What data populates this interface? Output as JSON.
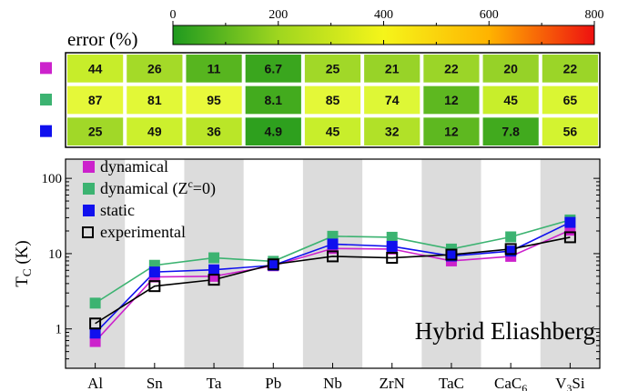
{
  "chart_data": [
    {
      "type": "heatmap",
      "colorbar": {
        "label": "error (%)",
        "ticks": [
          0,
          200,
          400,
          600,
          800
        ],
        "range": [
          0,
          800
        ],
        "colors": [
          "#1f9a1f",
          "#9fd61f",
          "#f5f51a",
          "#ffb300",
          "#ee1010"
        ]
      },
      "columns": [
        "Al",
        "Sn",
        "Ta",
        "Pb",
        "Nb",
        "ZrN",
        "TaC",
        "CaC6",
        "V3Si"
      ],
      "rows": [
        {
          "marker_color": "#cc22cc",
          "values": [
            44,
            26,
            11,
            6.7,
            25,
            21,
            22,
            20,
            22
          ],
          "labels": [
            "44",
            "26",
            "11",
            "6.7",
            "25",
            "21",
            "22",
            "20",
            "22"
          ]
        },
        {
          "marker_color": "#3cb371",
          "values": [
            87,
            81,
            95,
            8.1,
            85,
            74,
            12,
            45,
            65
          ],
          "labels": [
            "87",
            "81",
            "95",
            "8.1",
            "85",
            "74",
            "12",
            "45",
            "65"
          ]
        },
        {
          "marker_color": "#1010ee",
          "values": [
            25,
            49,
            36,
            4.9,
            45,
            32,
            12,
            7.8,
            56
          ],
          "labels": [
            "25",
            "49",
            "36",
            "4.9",
            "45",
            "32",
            "12",
            "7.8",
            "56"
          ]
        }
      ]
    },
    {
      "type": "line",
      "categories": [
        "Al",
        "Sn",
        "Ta",
        "Pb",
        "Nb",
        "ZrN",
        "TaC",
        "CaC6",
        "V3Si"
      ],
      "category_labels": [
        {
          "main": "Al",
          "sub": ""
        },
        {
          "main": "Sn",
          "sub": ""
        },
        {
          "main": "Ta",
          "sub": ""
        },
        {
          "main": "Pb",
          "sub": ""
        },
        {
          "main": "Nb",
          "sub": ""
        },
        {
          "main": "ZrN",
          "sub": ""
        },
        {
          "main": "TaC",
          "sub": ""
        },
        {
          "main": "CaC",
          "sub": "6"
        },
        {
          "main": "V",
          "sub": "3",
          "tail": "Si"
        }
      ],
      "ylabel": {
        "main": "T",
        "sub": "C",
        "tail": " (K)"
      },
      "ylim": [
        0.3,
        180
      ],
      "yscale": "log",
      "yticks": [
        1,
        10,
        100
      ],
      "ytick_labels": [
        "1",
        "10",
        "100"
      ],
      "annotation": "Hybrid Eliashberg",
      "legend_position": "top-left",
      "series": [
        {
          "name": "dynamical",
          "color": "#cc22cc",
          "marker": "filled-square",
          "values": [
            0.68,
            4.9,
            5.0,
            6.9,
            11.7,
            11.5,
            8.0,
            9.2,
            20.5
          ]
        },
        {
          "name": "dynamical",
          "name_super": "c",
          "name_prefix": "dynamical (Z",
          "name_suffix": "=0)",
          "color": "#3cb371",
          "marker": "filled-square",
          "values": [
            2.2,
            7.0,
            8.8,
            7.9,
            17.0,
            16.5,
            11.5,
            16.7,
            28.0
          ]
        },
        {
          "name": "static",
          "color": "#1010ee",
          "marker": "filled-square",
          "values": [
            0.88,
            5.7,
            6.1,
            7.0,
            13.4,
            12.5,
            9.3,
            10.8,
            26.0
          ]
        },
        {
          "name": "experimental",
          "color": "#000000",
          "marker": "open-square",
          "values": [
            1.18,
            3.7,
            4.5,
            7.2,
            9.2,
            8.8,
            9.7,
            11.5,
            16.5
          ]
        }
      ]
    }
  ]
}
